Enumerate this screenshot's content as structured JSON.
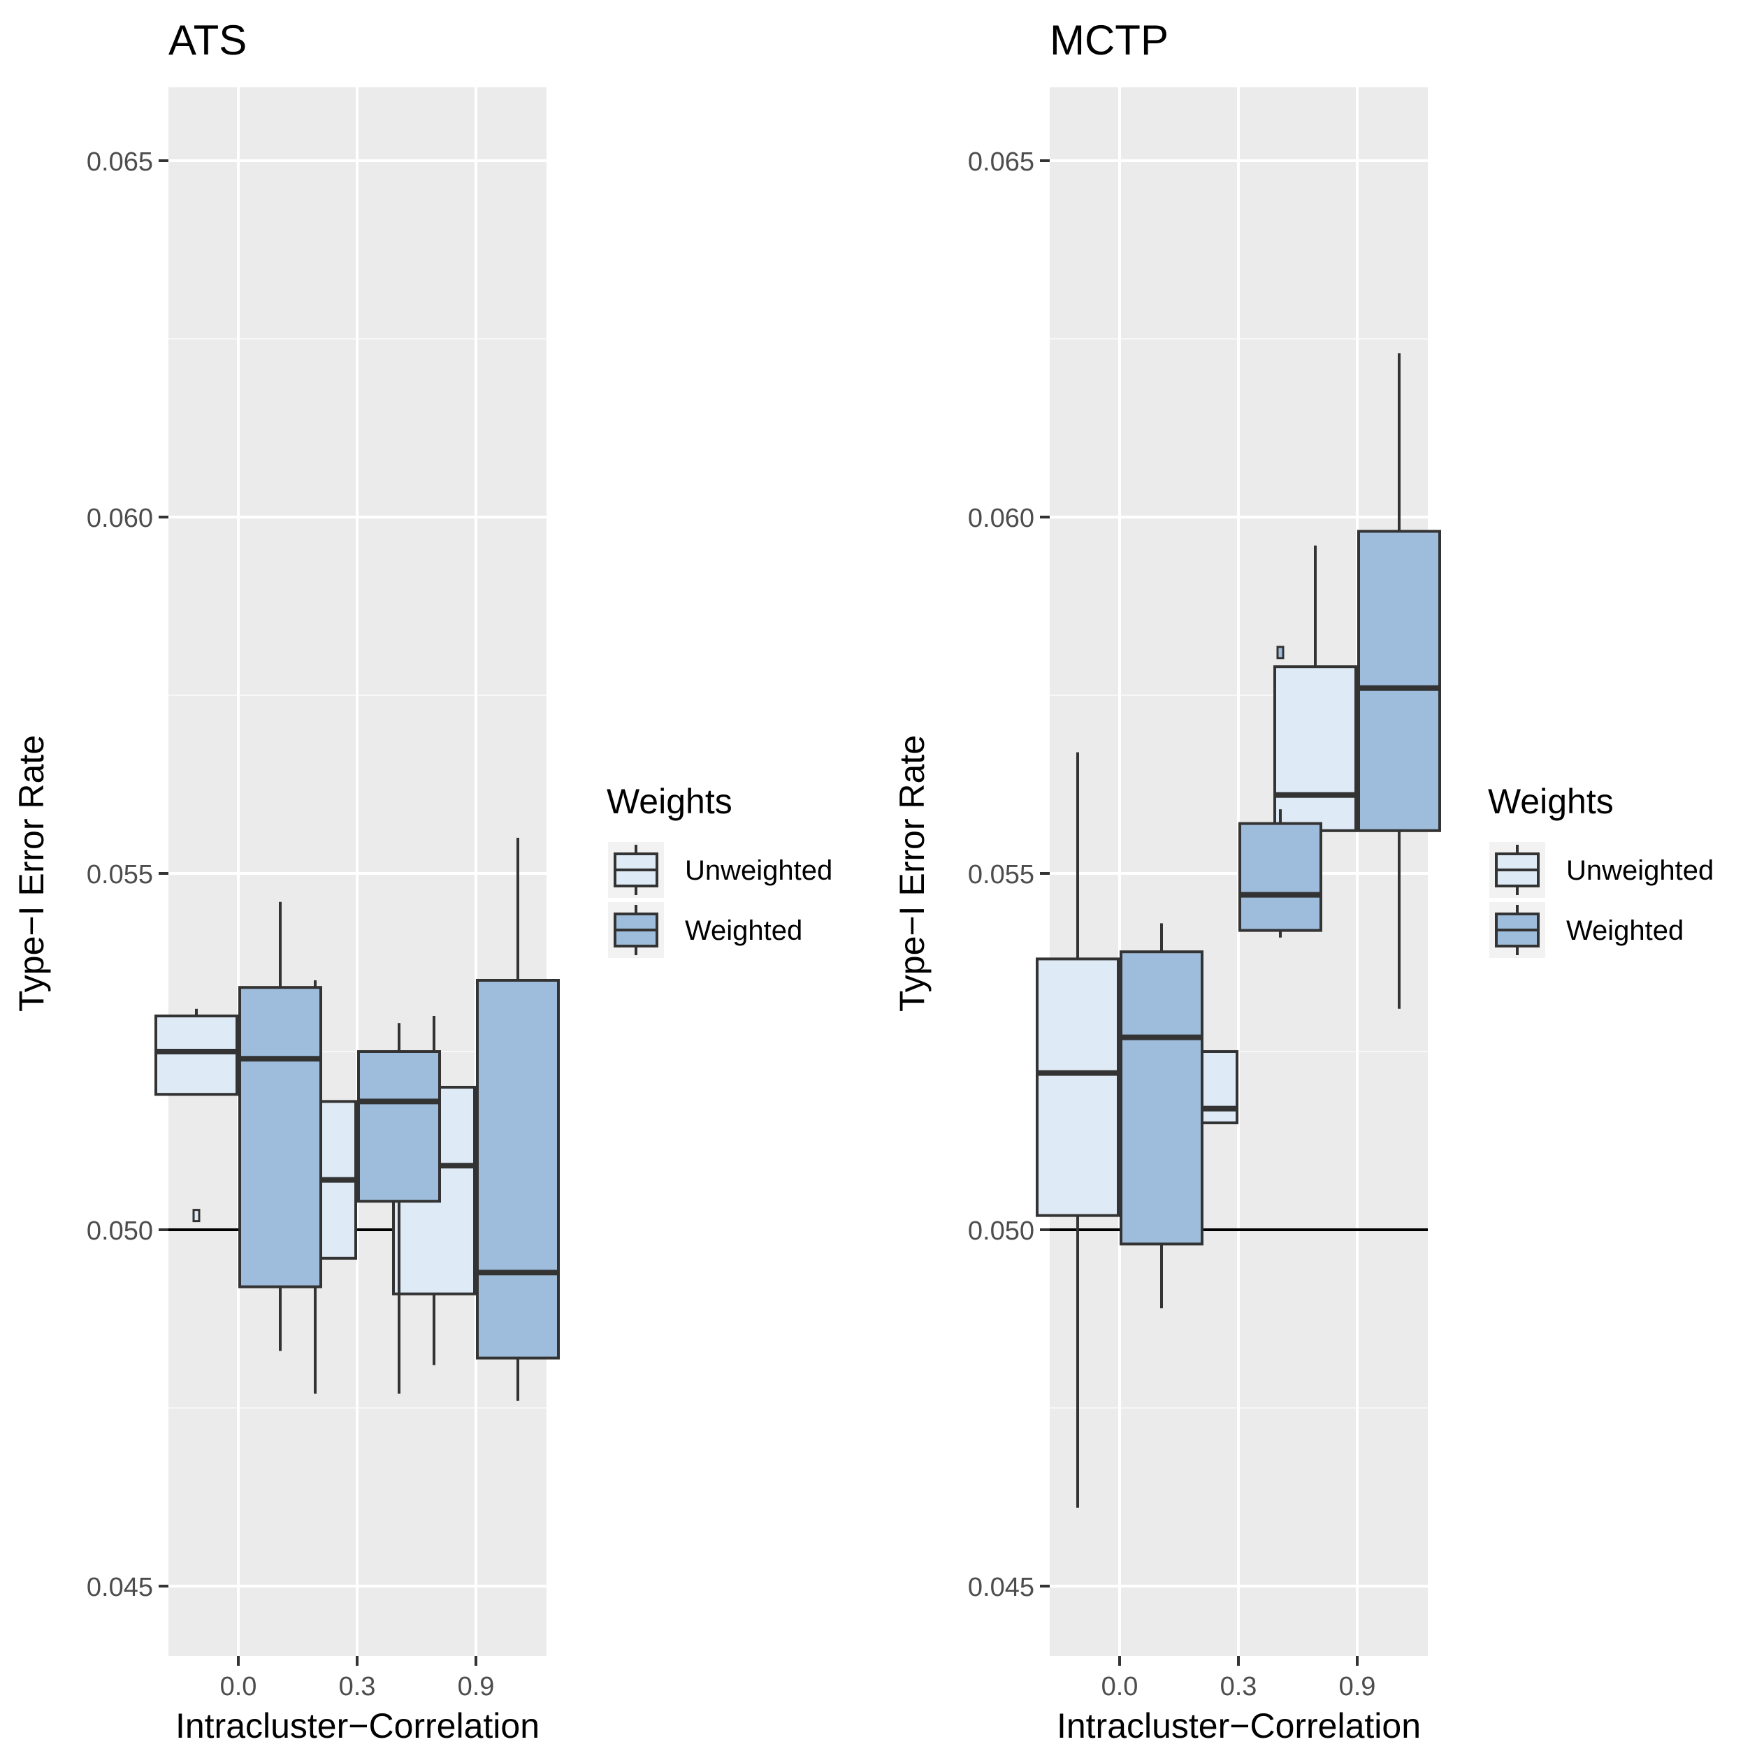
{
  "chart_data": [
    {
      "type": "boxplot",
      "title": "ATS",
      "xlabel": "Intracluster−Correlation",
      "ylabel": "Type−I Error Rate",
      "categories": [
        "0.0",
        "0.3",
        "0.9"
      ],
      "ylim": [
        0.044,
        0.066
      ],
      "yticks": [
        0.045,
        0.05,
        0.055,
        0.06,
        0.065
      ],
      "ytick_labels": [
        "0.045",
        "0.050",
        "0.055",
        "0.060",
        "0.065"
      ],
      "reference_line": 0.05,
      "legend": {
        "title": "Weights",
        "position": "right"
      },
      "series": [
        {
          "name": "Unweighted",
          "color": "#deebf7",
          "boxes": [
            {
              "category": "0.0",
              "whisker_low": 0.0519,
              "q1": 0.0519,
              "median": 0.0525,
              "q3": 0.053,
              "whisker_high": 0.0531,
              "outliers": [
                0.0502
              ]
            },
            {
              "category": "0.3",
              "whisker_low": 0.0477,
              "q1": 0.0496,
              "median": 0.0507,
              "q3": 0.0518,
              "whisker_high": 0.0535,
              "outliers": []
            },
            {
              "category": "0.9",
              "whisker_low": 0.0481,
              "q1": 0.0491,
              "median": 0.0509,
              "q3": 0.052,
              "whisker_high": 0.053,
              "outliers": []
            }
          ]
        },
        {
          "name": "Weighted",
          "color": "#9ebcdb",
          "boxes": [
            {
              "category": "0.0",
              "whisker_low": 0.0483,
              "q1": 0.0492,
              "median": 0.0524,
              "q3": 0.0534,
              "whisker_high": 0.0546,
              "outliers": []
            },
            {
              "category": "0.3",
              "whisker_low": 0.0477,
              "q1": 0.0504,
              "median": 0.0518,
              "q3": 0.0525,
              "whisker_high": 0.0529,
              "outliers": []
            },
            {
              "category": "0.9",
              "whisker_low": 0.0476,
              "q1": 0.0482,
              "median": 0.0494,
              "q3": 0.0535,
              "whisker_high": 0.0555,
              "outliers": []
            }
          ]
        }
      ]
    },
    {
      "type": "boxplot",
      "title": "MCTP",
      "xlabel": "Intracluster−Correlation",
      "ylabel": "Type−I Error Rate",
      "categories": [
        "0.0",
        "0.3",
        "0.9"
      ],
      "ylim": [
        0.044,
        0.066
      ],
      "yticks": [
        0.045,
        0.05,
        0.055,
        0.06,
        0.065
      ],
      "ytick_labels": [
        "0.045",
        "0.050",
        "0.055",
        "0.060",
        "0.065"
      ],
      "reference_line": 0.05,
      "legend": {
        "title": "Weights",
        "position": "right"
      },
      "series": [
        {
          "name": "Unweighted",
          "color": "#deebf7",
          "boxes": [
            {
              "category": "0.0",
              "whisker_low": 0.0461,
              "q1": 0.0502,
              "median": 0.0522,
              "q3": 0.0538,
              "whisker_high": 0.0567,
              "outliers": []
            },
            {
              "category": "0.3",
              "whisker_low": 0.0506,
              "q1": 0.0515,
              "median": 0.0517,
              "q3": 0.0525,
              "whisker_high": 0.0529,
              "outliers": []
            },
            {
              "category": "0.9",
              "whisker_low": 0.0542,
              "q1": 0.0556,
              "median": 0.0561,
              "q3": 0.0579,
              "whisker_high": 0.0596,
              "outliers": []
            }
          ]
        },
        {
          "name": "Weighted",
          "color": "#9ebcdb",
          "boxes": [
            {
              "category": "0.0",
              "whisker_low": 0.0489,
              "q1": 0.0498,
              "median": 0.0527,
              "q3": 0.0539,
              "whisker_high": 0.0543,
              "outliers": []
            },
            {
              "category": "0.3",
              "whisker_low": 0.0541,
              "q1": 0.0542,
              "median": 0.0547,
              "q3": 0.0557,
              "whisker_high": 0.0559,
              "outliers": [
                0.0581
              ]
            },
            {
              "category": "0.9",
              "whisker_low": 0.0531,
              "q1": 0.0556,
              "median": 0.0576,
              "q3": 0.0598,
              "whisker_high": 0.0623,
              "outliers": []
            }
          ]
        }
      ]
    }
  ]
}
